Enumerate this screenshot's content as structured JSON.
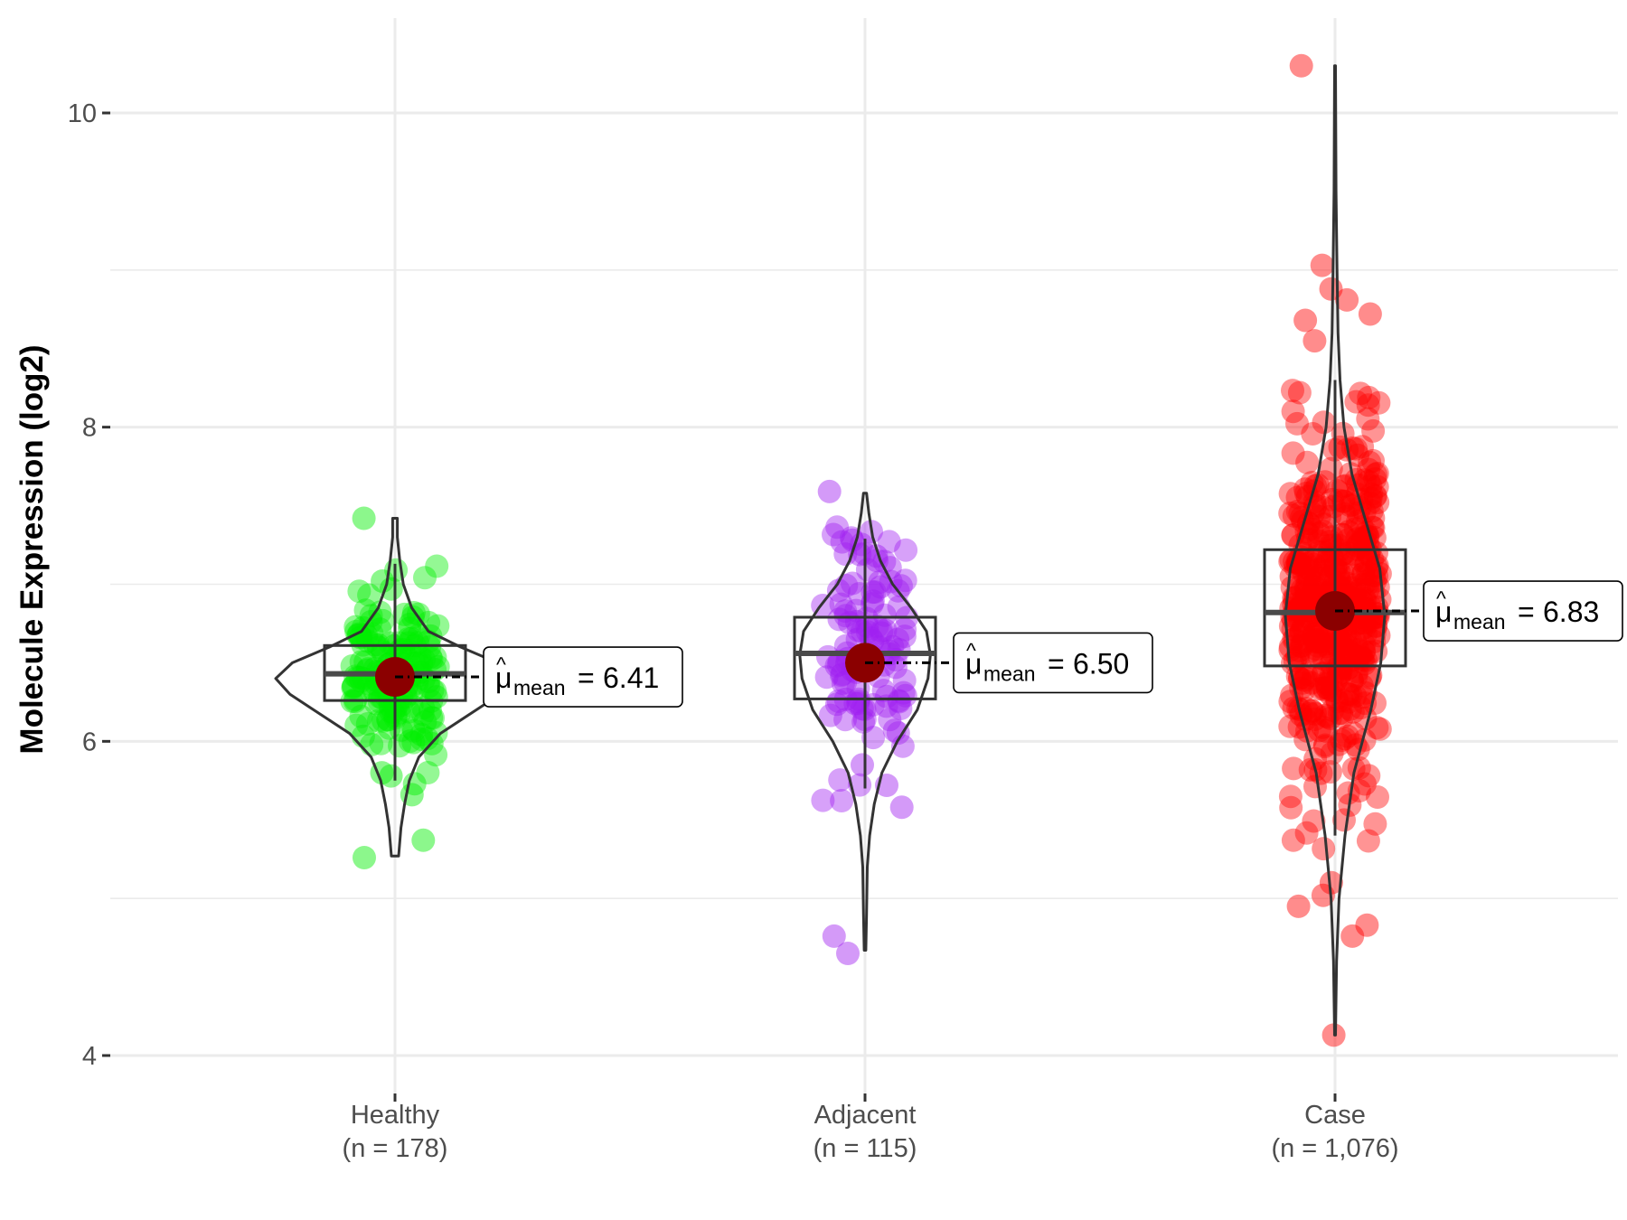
{
  "chart_data": {
    "type": "violin-box-jitter",
    "title": "",
    "xlabel": "",
    "ylabel": "Molecule Expression (log2)",
    "ylim": [
      3.95,
      10.6
    ],
    "yticks": [
      4,
      6,
      8,
      10
    ],
    "yminor": [
      5,
      7,
      9
    ],
    "grid": true,
    "groups": [
      {
        "name": "Healthy",
        "n_label": "(n = 178)",
        "color": "#00ee00",
        "mean": 6.41,
        "mean_label": "6.41",
        "box": {
          "q1": 6.26,
          "median": 6.43,
          "q3": 6.61,
          "whisker_low": 5.75,
          "whisker_high": 7.13
        },
        "violin": [
          [
            5.27,
            0.03
          ],
          [
            5.45,
            0.05
          ],
          [
            5.6,
            0.08
          ],
          [
            5.75,
            0.12
          ],
          [
            5.9,
            0.2
          ],
          [
            6.05,
            0.38
          ],
          [
            6.2,
            0.68
          ],
          [
            6.3,
            0.88
          ],
          [
            6.4,
            1.0
          ],
          [
            6.5,
            0.86
          ],
          [
            6.6,
            0.55
          ],
          [
            6.7,
            0.28
          ],
          [
            6.85,
            0.14
          ],
          [
            7.0,
            0.07
          ],
          [
            7.15,
            0.04
          ],
          [
            7.3,
            0.02
          ],
          [
            7.42,
            0.02
          ]
        ],
        "outliers": [
          7.42,
          7.02,
          6.97,
          5.73,
          5.37,
          5.26,
          5.8,
          5.78,
          5.66
        ]
      },
      {
        "name": "Adjacent",
        "n_label": "(n = 115)",
        "color": "#a020f0",
        "mean": 6.5,
        "mean_label": "6.50",
        "box": {
          "q1": 6.27,
          "median": 6.56,
          "q3": 6.79,
          "whisker_low": 5.7,
          "whisker_high": 7.29
        },
        "violin": [
          [
            4.67,
            0.01
          ],
          [
            4.9,
            0.02
          ],
          [
            5.2,
            0.03
          ],
          [
            5.4,
            0.06
          ],
          [
            5.6,
            0.12
          ],
          [
            5.8,
            0.22
          ],
          [
            6.0,
            0.42
          ],
          [
            6.2,
            0.68
          ],
          [
            6.4,
            0.82
          ],
          [
            6.55,
            0.85
          ],
          [
            6.7,
            0.8
          ],
          [
            6.85,
            0.6
          ],
          [
            7.0,
            0.36
          ],
          [
            7.15,
            0.2
          ],
          [
            7.3,
            0.1
          ],
          [
            7.45,
            0.05
          ],
          [
            7.58,
            0.02
          ]
        ],
        "outliers": [
          7.59,
          7.28,
          7.19,
          7.18,
          5.58,
          4.76,
          4.65,
          5.85,
          5.72
        ]
      },
      {
        "name": "Case",
        "n_label": "(n = 1,076)",
        "color": "#ff0000",
        "mean": 6.83,
        "mean_label": "6.83",
        "box": {
          "q1": 6.48,
          "median": 6.82,
          "q3": 7.22,
          "whisker_low": 5.4,
          "whisker_high": 8.3
        },
        "violin": [
          [
            4.13,
            0.01
          ],
          [
            4.6,
            0.03
          ],
          [
            5.0,
            0.08
          ],
          [
            5.4,
            0.2
          ],
          [
            5.8,
            0.38
          ],
          [
            6.2,
            0.72
          ],
          [
            6.5,
            0.92
          ],
          [
            6.8,
            1.0
          ],
          [
            7.1,
            0.9
          ],
          [
            7.4,
            0.62
          ],
          [
            7.7,
            0.34
          ],
          [
            8.0,
            0.18
          ],
          [
            8.3,
            0.1
          ],
          [
            8.6,
            0.06
          ],
          [
            9.0,
            0.04
          ],
          [
            9.5,
            0.02
          ],
          [
            10.3,
            0.01
          ]
        ],
        "outliers": [
          10.3,
          9.03,
          8.88,
          8.81,
          8.72,
          8.68,
          8.55,
          4.13,
          4.76,
          4.83,
          4.95,
          5.02,
          5.1
        ]
      }
    ],
    "annotation_prefix": "mean",
    "annotation_symbol": "μ"
  }
}
